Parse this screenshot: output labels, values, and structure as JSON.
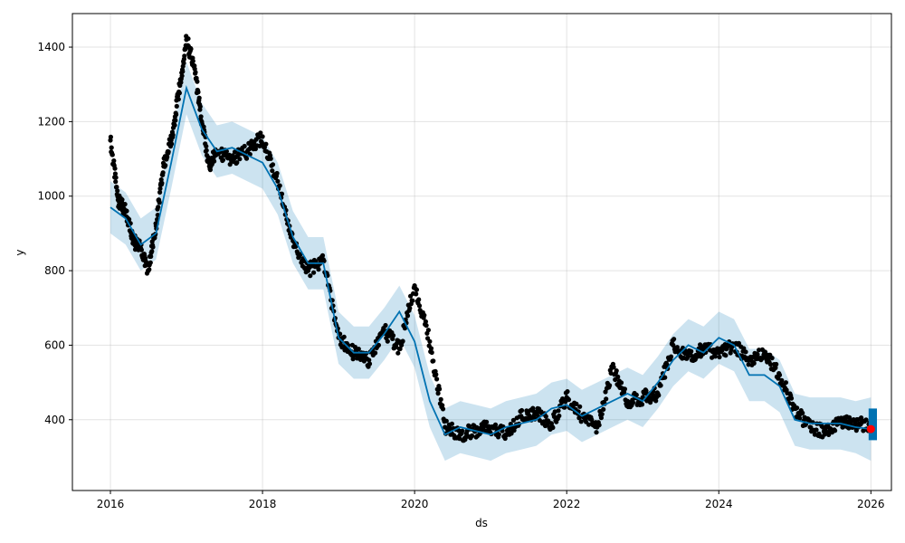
{
  "chart_data": {
    "type": "line",
    "title": "",
    "xlabel": "ds",
    "ylabel": "y",
    "xlim": [
      2015.5,
      2026.27
    ],
    "ylim": [
      210,
      1490
    ],
    "x_ticks": [
      2016,
      2018,
      2020,
      2022,
      2024,
      2026
    ],
    "y_ticks": [
      400,
      600,
      800,
      1000,
      1200,
      1400
    ],
    "grid": true,
    "legend": "none",
    "colors": {
      "observed": "#000000",
      "forecast_line": "#0072B2",
      "interval_fill": "#0072B2",
      "highlight": "#ff0000"
    },
    "series": [
      {
        "kind": "observed-points",
        "x": [
          2016.0,
          2016.1,
          2016.2,
          2016.3,
          2016.4,
          2016.5,
          2016.6,
          2016.7,
          2016.8,
          2016.9,
          2017.0,
          2017.1,
          2017.2,
          2017.3,
          2017.4,
          2017.6,
          2017.8,
          2018.0,
          2018.2,
          2018.4,
          2018.6,
          2018.8,
          2019.0,
          2019.2,
          2019.4,
          2019.6,
          2019.8,
          2020.0,
          2020.2,
          2020.4,
          2020.6,
          2020.8,
          2021.0,
          2021.2,
          2021.4,
          2021.6,
          2021.8,
          2022.0,
          2022.2,
          2022.4,
          2022.6,
          2022.8,
          2023.0,
          2023.2,
          2023.4,
          2023.6,
          2023.8,
          2024.0,
          2024.2,
          2024.4,
          2024.6,
          2024.8,
          2025.0,
          2025.2,
          2025.4,
          2025.6,
          2025.8,
          2026.0
        ],
        "y": [
          1150,
          990,
          960,
          880,
          860,
          800,
          920,
          1080,
          1150,
          1280,
          1420,
          1350,
          1200,
          1080,
          1120,
          1100,
          1120,
          1160,
          1040,
          880,
          800,
          830,
          620,
          580,
          560,
          640,
          590,
          760,
          610,
          380,
          360,
          370,
          380,
          360,
          410,
          420,
          390,
          460,
          410,
          380,
          540,
          450,
          460,
          470,
          600,
          570,
          590,
          580,
          600,
          560,
          580,
          520,
          430,
          380,
          370,
          390,
          390,
          380
        ]
      },
      {
        "kind": "forecast-line",
        "x": [
          2016.0,
          2016.2,
          2016.4,
          2016.6,
          2016.8,
          2017.0,
          2017.2,
          2017.4,
          2017.6,
          2017.8,
          2018.0,
          2018.2,
          2018.4,
          2018.6,
          2018.8,
          2019.0,
          2019.2,
          2019.4,
          2019.6,
          2019.8,
          2020.0,
          2020.2,
          2020.4,
          2020.6,
          2020.8,
          2021.0,
          2021.2,
          2021.4,
          2021.6,
          2021.8,
          2022.0,
          2022.2,
          2022.4,
          2022.6,
          2022.8,
          2023.0,
          2023.2,
          2023.4,
          2023.6,
          2023.8,
          2024.0,
          2024.2,
          2024.4,
          2024.6,
          2024.8,
          2025.0,
          2025.2,
          2025.4,
          2025.6,
          2025.8,
          2026.0
        ],
        "y": [
          970,
          940,
          870,
          900,
          1090,
          1290,
          1180,
          1120,
          1130,
          1110,
          1090,
          1020,
          890,
          820,
          820,
          620,
          580,
          580,
          630,
          690,
          610,
          450,
          360,
          380,
          370,
          360,
          380,
          390,
          400,
          430,
          440,
          410,
          430,
          450,
          470,
          450,
          500,
          560,
          600,
          580,
          620,
          600,
          520,
          520,
          490,
          400,
          390,
          390,
          390,
          380,
          375
        ]
      },
      {
        "kind": "uncertainty-interval",
        "x": [
          2016.0,
          2016.2,
          2016.4,
          2016.6,
          2016.8,
          2017.0,
          2017.2,
          2017.4,
          2017.6,
          2017.8,
          2018.0,
          2018.2,
          2018.4,
          2018.6,
          2018.8,
          2019.0,
          2019.2,
          2019.4,
          2019.6,
          2019.8,
          2020.0,
          2020.2,
          2020.4,
          2020.6,
          2020.8,
          2021.0,
          2021.2,
          2021.4,
          2021.6,
          2021.8,
          2022.0,
          2022.2,
          2022.4,
          2022.6,
          2022.8,
          2023.0,
          2023.2,
          2023.4,
          2023.6,
          2023.8,
          2024.0,
          2024.2,
          2024.4,
          2024.6,
          2024.8,
          2025.0,
          2025.2,
          2025.4,
          2025.6,
          2025.8,
          2026.0
        ],
        "lower": [
          900,
          870,
          800,
          830,
          1020,
          1220,
          1110,
          1050,
          1060,
          1040,
          1020,
          950,
          820,
          750,
          750,
          550,
          510,
          510,
          560,
          620,
          540,
          380,
          290,
          310,
          300,
          290,
          310,
          320,
          330,
          360,
          370,
          340,
          360,
          380,
          400,
          380,
          430,
          490,
          530,
          510,
          550,
          530,
          450,
          450,
          420,
          330,
          320,
          320,
          320,
          310,
          290
        ],
        "upper": [
          1040,
          1010,
          940,
          970,
          1160,
          1360,
          1250,
          1190,
          1200,
          1180,
          1160,
          1090,
          960,
          890,
          890,
          690,
          650,
          650,
          700,
          760,
          680,
          520,
          430,
          450,
          440,
          430,
          450,
          460,
          470,
          500,
          510,
          480,
          500,
          520,
          540,
          520,
          570,
          630,
          670,
          650,
          690,
          670,
          590,
          590,
          560,
          470,
          460,
          460,
          460,
          450,
          460
        ]
      },
      {
        "kind": "highlight-point",
        "x": [
          2026.0
        ],
        "y": [
          375
        ]
      }
    ]
  }
}
